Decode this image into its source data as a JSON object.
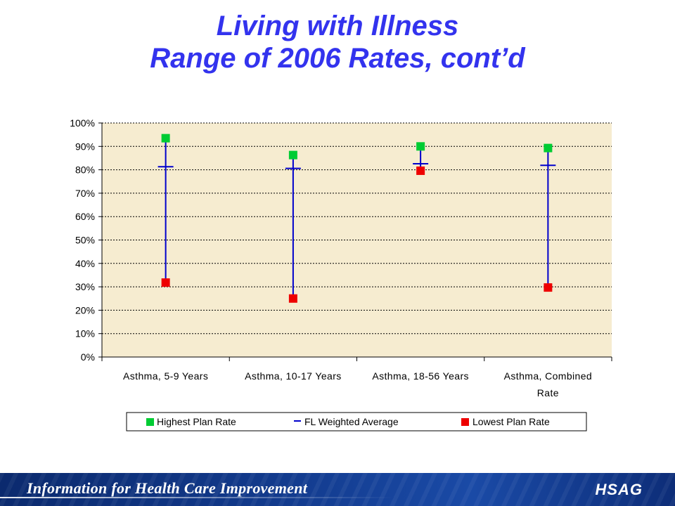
{
  "header": {
    "title_line1": "Living with Illness",
    "title_line2": "Range of 2006 Rates, cont’d"
  },
  "footer": {
    "tagline": "Information for Health Care Improvement",
    "logo": "HSAG"
  },
  "colors": {
    "title": "#3333ee",
    "plot_bg": "#f6ecd0",
    "highest": "#00cc33",
    "lowest": "#ee0000",
    "average": "#0000cc"
  },
  "chart_data": {
    "type": "scatter",
    "title": "",
    "xlabel": "",
    "ylabel": "",
    "ylim": [
      0,
      100
    ],
    "y_ticks": [
      "0%",
      "10%",
      "20%",
      "30%",
      "40%",
      "50%",
      "60%",
      "70%",
      "80%",
      "90%",
      "100%"
    ],
    "grid": true,
    "legend_position": "bottom",
    "categories": [
      [
        "Asthma, 5-9 Years"
      ],
      [
        "Asthma, 10-17 Years"
      ],
      [
        "Asthma, 18-56 Years"
      ],
      [
        "Asthma, Combined",
        "Rate"
      ]
    ],
    "series": [
      {
        "name": "Highest Plan Rate",
        "marker": "square",
        "values": [
          93.5,
          86.3,
          90.0,
          89.3
        ]
      },
      {
        "name": "FL Weighted Average",
        "marker": "dash",
        "values": [
          81.3,
          80.6,
          82.6,
          81.9
        ]
      },
      {
        "name": "Lowest Plan Rate",
        "marker": "square",
        "values": [
          31.8,
          25.0,
          79.6,
          29.7
        ]
      }
    ]
  }
}
